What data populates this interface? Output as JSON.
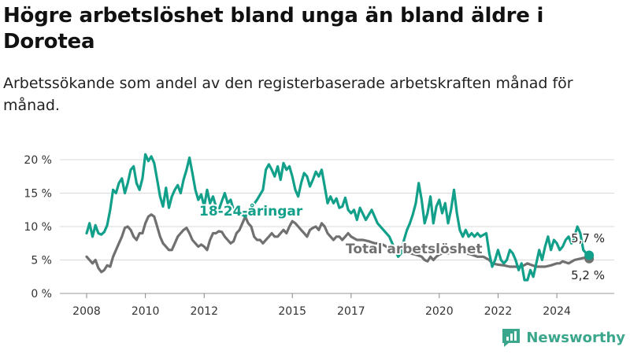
{
  "title": "Högre arbetslöshet bland unga än bland äldre i Dorotea",
  "subtitle": "Arbetssökande som andel av den registerbaserade arbetskraften månad för månad.",
  "brand": "Newsworthy",
  "colors": {
    "youth": "#12a08a",
    "total": "#707070",
    "grid": "#d9d9d9",
    "brand": "#3aa68c"
  },
  "chart_data": {
    "type": "line",
    "ylim": [
      0,
      20
    ],
    "y_ticks": [
      {
        "value": 0,
        "label": "0 %"
      },
      {
        "value": 5,
        "label": "5 %"
      },
      {
        "value": 10,
        "label": "10 %"
      },
      {
        "value": 15,
        "label": "15 %"
      },
      {
        "value": 20,
        "label": "20 %"
      }
    ],
    "x_ticks": [
      {
        "value": 2008,
        "label": "2008"
      },
      {
        "value": 2010,
        "label": "2010"
      },
      {
        "value": 2012,
        "label": "2012"
      },
      {
        "value": 2015,
        "label": "2015"
      },
      {
        "value": 2017,
        "label": "2017"
      },
      {
        "value": 2020,
        "label": "2020"
      },
      {
        "value": 2022,
        "label": "2022"
      },
      {
        "value": 2024,
        "label": "2024"
      }
    ],
    "series": [
      {
        "name": "18-24-åringar",
        "color": "#12a08a",
        "end_label": "5,7 %",
        "points": [
          [
            2008.0,
            9.0
          ],
          [
            2008.1,
            10.5
          ],
          [
            2008.2,
            8.5
          ],
          [
            2008.3,
            10.2
          ],
          [
            2008.4,
            9.0
          ],
          [
            2008.5,
            8.8
          ],
          [
            2008.6,
            9.2
          ],
          [
            2008.7,
            10.2
          ],
          [
            2008.8,
            12.5
          ],
          [
            2008.9,
            15.5
          ],
          [
            2009.0,
            15.0
          ],
          [
            2009.1,
            16.5
          ],
          [
            2009.2,
            17.2
          ],
          [
            2009.3,
            15.0
          ],
          [
            2009.4,
            16.5
          ],
          [
            2009.5,
            18.5
          ],
          [
            2009.6,
            19.0
          ],
          [
            2009.7,
            16.5
          ],
          [
            2009.8,
            15.5
          ],
          [
            2009.9,
            17.2
          ],
          [
            2010.0,
            20.8
          ],
          [
            2010.1,
            19.8
          ],
          [
            2010.2,
            20.5
          ],
          [
            2010.3,
            19.5
          ],
          [
            2010.4,
            17.0
          ],
          [
            2010.5,
            14.5
          ],
          [
            2010.6,
            13.0
          ],
          [
            2010.7,
            15.8
          ],
          [
            2010.8,
            12.8
          ],
          [
            2010.9,
            14.5
          ],
          [
            2011.0,
            15.5
          ],
          [
            2011.1,
            16.2
          ],
          [
            2011.2,
            15.0
          ],
          [
            2011.3,
            17.0
          ],
          [
            2011.4,
            18.5
          ],
          [
            2011.5,
            20.3
          ],
          [
            2011.6,
            18.0
          ],
          [
            2011.7,
            15.5
          ],
          [
            2011.8,
            14.0
          ],
          [
            2011.9,
            14.8
          ],
          [
            2012.0,
            13.0
          ],
          [
            2012.1,
            15.5
          ],
          [
            2012.2,
            13.5
          ],
          [
            2012.3,
            14.5
          ],
          [
            2012.4,
            13.0
          ],
          [
            2012.5,
            12.5
          ],
          [
            2012.6,
            13.8
          ],
          [
            2012.7,
            15.0
          ],
          [
            2012.8,
            13.5
          ],
          [
            2012.9,
            14.0
          ],
          [
            2013.0,
            12.5
          ],
          [
            2013.2,
            12.0
          ],
          [
            2013.4,
            11.5
          ],
          [
            2013.6,
            12.8
          ],
          [
            2013.8,
            14.0
          ],
          [
            2014.0,
            15.5
          ],
          [
            2014.1,
            18.5
          ],
          [
            2014.2,
            19.3
          ],
          [
            2014.3,
            18.5
          ],
          [
            2014.4,
            17.5
          ],
          [
            2014.5,
            19.0
          ],
          [
            2014.6,
            17.0
          ],
          [
            2014.7,
            19.5
          ],
          [
            2014.8,
            18.5
          ],
          [
            2014.9,
            19.0
          ],
          [
            2015.0,
            17.5
          ],
          [
            2015.1,
            15.5
          ],
          [
            2015.2,
            14.5
          ],
          [
            2015.3,
            16.5
          ],
          [
            2015.4,
            18.0
          ],
          [
            2015.5,
            17.5
          ],
          [
            2015.6,
            16.0
          ],
          [
            2015.7,
            17.0
          ],
          [
            2015.8,
            18.2
          ],
          [
            2015.9,
            17.5
          ],
          [
            2016.0,
            18.5
          ],
          [
            2016.1,
            16.0
          ],
          [
            2016.2,
            13.5
          ],
          [
            2016.3,
            14.5
          ],
          [
            2016.4,
            13.5
          ],
          [
            2016.5,
            14.2
          ],
          [
            2016.6,
            12.8
          ],
          [
            2016.7,
            13.0
          ],
          [
            2016.8,
            14.3
          ],
          [
            2016.9,
            12.5
          ],
          [
            2017.0,
            12.0
          ],
          [
            2017.1,
            12.5
          ],
          [
            2017.2,
            11.0
          ],
          [
            2017.3,
            12.8
          ],
          [
            2017.5,
            11.0
          ],
          [
            2017.7,
            12.5
          ],
          [
            2017.9,
            10.5
          ],
          [
            2018.1,
            9.5
          ],
          [
            2018.3,
            8.5
          ],
          [
            2018.5,
            6.5
          ],
          [
            2018.6,
            5.5
          ],
          [
            2018.7,
            6.0
          ],
          [
            2018.8,
            8.0
          ],
          [
            2018.9,
            9.5
          ],
          [
            2019.0,
            10.5
          ],
          [
            2019.1,
            11.8
          ],
          [
            2019.2,
            13.5
          ],
          [
            2019.3,
            16.5
          ],
          [
            2019.4,
            14.0
          ],
          [
            2019.5,
            10.5
          ],
          [
            2019.6,
            12.0
          ],
          [
            2019.7,
            14.5
          ],
          [
            2019.8,
            10.5
          ],
          [
            2019.9,
            13.0
          ],
          [
            2020.0,
            14.0
          ],
          [
            2020.1,
            12.0
          ],
          [
            2020.2,
            13.5
          ],
          [
            2020.3,
            10.5
          ],
          [
            2020.4,
            12.5
          ],
          [
            2020.5,
            15.5
          ],
          [
            2020.6,
            12.0
          ],
          [
            2020.7,
            9.5
          ],
          [
            2020.8,
            8.5
          ],
          [
            2020.9,
            9.5
          ],
          [
            2021.0,
            8.5
          ],
          [
            2021.1,
            9.0
          ],
          [
            2021.2,
            8.5
          ],
          [
            2021.3,
            9.0
          ],
          [
            2021.4,
            8.5
          ],
          [
            2021.6,
            9.0
          ],
          [
            2021.7,
            6.0
          ],
          [
            2021.8,
            4.0
          ],
          [
            2021.9,
            5.0
          ],
          [
            2022.0,
            6.5
          ],
          [
            2022.1,
            5.0
          ],
          [
            2022.2,
            4.5
          ],
          [
            2022.3,
            5.0
          ],
          [
            2022.4,
            6.5
          ],
          [
            2022.5,
            6.0
          ],
          [
            2022.6,
            5.0
          ],
          [
            2022.7,
            3.5
          ],
          [
            2022.8,
            4.5
          ],
          [
            2022.9,
            2.0
          ],
          [
            2023.0,
            2.0
          ],
          [
            2023.1,
            3.5
          ],
          [
            2023.2,
            2.5
          ],
          [
            2023.3,
            4.5
          ],
          [
            2023.4,
            6.5
          ],
          [
            2023.5,
            5.0
          ],
          [
            2023.6,
            7.0
          ],
          [
            2023.7,
            8.5
          ],
          [
            2023.8,
            6.5
          ],
          [
            2023.9,
            8.0
          ],
          [
            2024.0,
            7.5
          ],
          [
            2024.1,
            6.5
          ],
          [
            2024.2,
            7.0
          ],
          [
            2024.3,
            8.0
          ],
          [
            2024.4,
            8.5
          ],
          [
            2024.5,
            7.5
          ],
          [
            2024.6,
            8.5
          ],
          [
            2024.7,
            10.0
          ],
          [
            2024.8,
            9.0
          ],
          [
            2024.9,
            6.5
          ],
          [
            2025.0,
            6.0
          ],
          [
            2025.1,
            5.7
          ]
        ]
      },
      {
        "name": "Total arbetslöshet",
        "color": "#707070",
        "end_label": "5,2 %",
        "points": [
          [
            2008.0,
            5.5
          ],
          [
            2008.1,
            5.0
          ],
          [
            2008.2,
            4.5
          ],
          [
            2008.3,
            5.0
          ],
          [
            2008.4,
            3.8
          ],
          [
            2008.5,
            3.2
          ],
          [
            2008.6,
            3.5
          ],
          [
            2008.7,
            4.2
          ],
          [
            2008.8,
            4.0
          ],
          [
            2008.9,
            5.5
          ],
          [
            2009.0,
            6.5
          ],
          [
            2009.1,
            7.5
          ],
          [
            2009.2,
            8.5
          ],
          [
            2009.3,
            9.8
          ],
          [
            2009.4,
            10.0
          ],
          [
            2009.5,
            9.5
          ],
          [
            2009.6,
            8.5
          ],
          [
            2009.7,
            8.0
          ],
          [
            2009.8,
            9.0
          ],
          [
            2009.9,
            9.0
          ],
          [
            2010.0,
            10.5
          ],
          [
            2010.1,
            11.5
          ],
          [
            2010.2,
            11.8
          ],
          [
            2010.3,
            11.5
          ],
          [
            2010.4,
            10.0
          ],
          [
            2010.5,
            8.5
          ],
          [
            2010.6,
            7.5
          ],
          [
            2010.7,
            7.0
          ],
          [
            2010.8,
            6.5
          ],
          [
            2010.9,
            6.5
          ],
          [
            2011.0,
            7.5
          ],
          [
            2011.1,
            8.5
          ],
          [
            2011.2,
            9.0
          ],
          [
            2011.3,
            9.5
          ],
          [
            2011.4,
            9.8
          ],
          [
            2011.5,
            9.0
          ],
          [
            2011.6,
            8.0
          ],
          [
            2011.7,
            7.5
          ],
          [
            2011.8,
            7.0
          ],
          [
            2011.9,
            7.3
          ],
          [
            2012.0,
            7.0
          ],
          [
            2012.1,
            6.5
          ],
          [
            2012.2,
            8.0
          ],
          [
            2012.3,
            9.0
          ],
          [
            2012.4,
            9.0
          ],
          [
            2012.5,
            9.3
          ],
          [
            2012.6,
            9.2
          ],
          [
            2012.7,
            8.5
          ],
          [
            2012.8,
            8.0
          ],
          [
            2012.9,
            7.5
          ],
          [
            2013.0,
            7.8
          ],
          [
            2013.1,
            9.0
          ],
          [
            2013.2,
            9.5
          ],
          [
            2013.3,
            10.5
          ],
          [
            2013.4,
            11.5
          ],
          [
            2013.5,
            10.5
          ],
          [
            2013.6,
            10.0
          ],
          [
            2013.7,
            8.5
          ],
          [
            2013.8,
            8.0
          ],
          [
            2013.9,
            8.0
          ],
          [
            2014.0,
            7.5
          ],
          [
            2014.1,
            8.0
          ],
          [
            2014.2,
            8.5
          ],
          [
            2014.3,
            9.0
          ],
          [
            2014.4,
            8.5
          ],
          [
            2014.5,
            8.5
          ],
          [
            2014.6,
            9.0
          ],
          [
            2014.7,
            9.5
          ],
          [
            2014.8,
            9.0
          ],
          [
            2014.9,
            10.0
          ],
          [
            2015.0,
            10.8
          ],
          [
            2015.1,
            10.5
          ],
          [
            2015.2,
            10.0
          ],
          [
            2015.3,
            9.5
          ],
          [
            2015.4,
            9.0
          ],
          [
            2015.5,
            8.5
          ],
          [
            2015.6,
            9.5
          ],
          [
            2015.7,
            9.8
          ],
          [
            2015.8,
            10.0
          ],
          [
            2015.9,
            9.5
          ],
          [
            2016.0,
            10.5
          ],
          [
            2016.1,
            10.0
          ],
          [
            2016.2,
            9.0
          ],
          [
            2016.3,
            8.5
          ],
          [
            2016.4,
            8.0
          ],
          [
            2016.5,
            8.5
          ],
          [
            2016.6,
            8.5
          ],
          [
            2016.7,
            8.0
          ],
          [
            2016.8,
            8.5
          ],
          [
            2016.9,
            9.0
          ],
          [
            2017.0,
            8.5
          ],
          [
            2017.2,
            8.0
          ],
          [
            2017.4,
            8.0
          ],
          [
            2017.6,
            7.8
          ],
          [
            2017.8,
            7.5
          ],
          [
            2018.0,
            7.5
          ],
          [
            2018.2,
            7.0
          ],
          [
            2018.4,
            6.5
          ],
          [
            2018.6,
            6.0
          ],
          [
            2018.8,
            6.2
          ],
          [
            2019.0,
            6.0
          ],
          [
            2019.2,
            5.8
          ],
          [
            2019.4,
            5.5
          ],
          [
            2019.5,
            5.0
          ],
          [
            2019.6,
            4.8
          ],
          [
            2019.7,
            5.5
          ],
          [
            2019.8,
            5.0
          ],
          [
            2019.9,
            5.5
          ],
          [
            2020.0,
            5.8
          ],
          [
            2020.1,
            6.0
          ],
          [
            2020.3,
            6.0
          ],
          [
            2020.5,
            6.2
          ],
          [
            2020.7,
            6.0
          ],
          [
            2020.9,
            6.0
          ],
          [
            2021.1,
            5.8
          ],
          [
            2021.3,
            5.5
          ],
          [
            2021.5,
            5.5
          ],
          [
            2021.7,
            5.0
          ],
          [
            2021.8,
            4.5
          ],
          [
            2022.0,
            4.3
          ],
          [
            2022.2,
            4.2
          ],
          [
            2022.4,
            4.0
          ],
          [
            2022.6,
            4.0
          ],
          [
            2022.8,
            4.0
          ],
          [
            2023.0,
            4.5
          ],
          [
            2023.1,
            4.3
          ],
          [
            2023.3,
            4.0
          ],
          [
            2023.5,
            4.0
          ],
          [
            2023.6,
            4.0
          ],
          [
            2023.8,
            4.2
          ],
          [
            2024.0,
            4.5
          ],
          [
            2024.1,
            4.5
          ],
          [
            2024.2,
            4.8
          ],
          [
            2024.4,
            4.5
          ],
          [
            2024.6,
            5.0
          ],
          [
            2024.8,
            5.2
          ],
          [
            2025.0,
            5.4
          ],
          [
            2025.1,
            5.2
          ]
        ]
      }
    ]
  }
}
